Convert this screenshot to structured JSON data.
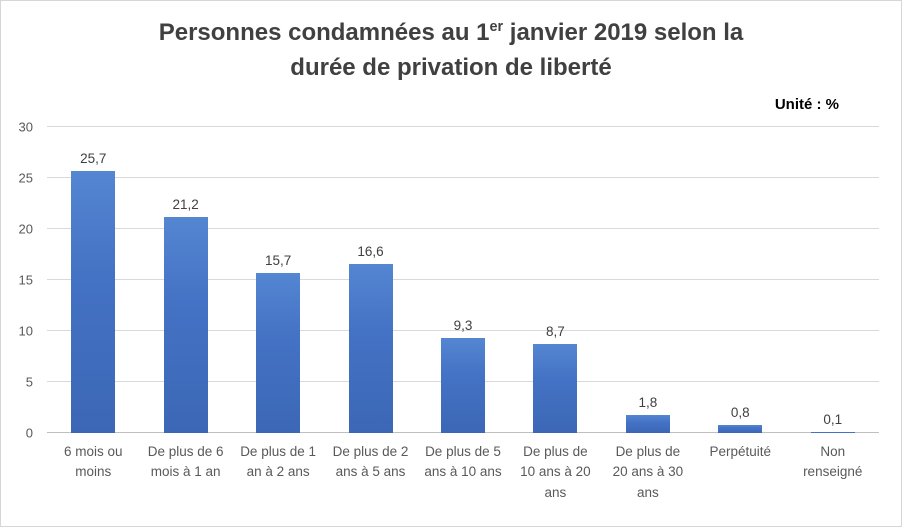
{
  "title": {
    "line1_prefix": "Personnes condamnées au 1",
    "sup": "er",
    "line1_suffix": " janvier 2019 selon la",
    "line2": "durée de privation de liberté"
  },
  "unit_label": "Unité : %",
  "chart_data": {
    "type": "bar",
    "title": "Personnes condamnées au 1er janvier 2019 selon la durée de privation de liberté",
    "subtitle": "",
    "unit_label": "Unité : %",
    "categories": [
      "6 mois ou moins",
      "De plus de 6 mois à 1 an",
      "De plus de 1 an à 2 ans",
      "De plus de 2 ans à 5 ans",
      "De plus de 5 ans à 10 ans",
      "De plus de 10 ans à 20 ans",
      "De plus de 20 ans à 30 ans",
      "Perpétuité",
      "Non renseigné"
    ],
    "values": [
      25.7,
      21.2,
      15.7,
      16.6,
      9.3,
      8.7,
      1.8,
      0.8,
      0.1
    ],
    "value_labels": [
      "25,7",
      "21,2",
      "15,7",
      "16,6",
      "9,3",
      "8,7",
      "1,8",
      "0,8",
      "0,1"
    ],
    "xlabel": "",
    "ylabel": "",
    "ylim": [
      0,
      30
    ],
    "yticks": [
      0,
      5,
      10,
      15,
      20,
      25,
      30
    ],
    "grid": true,
    "legend_position": "none",
    "bar_color": "#4472C4",
    "title_color": "#404040",
    "tick_color": "#595959",
    "gridline_color": "#D9D9D9"
  }
}
